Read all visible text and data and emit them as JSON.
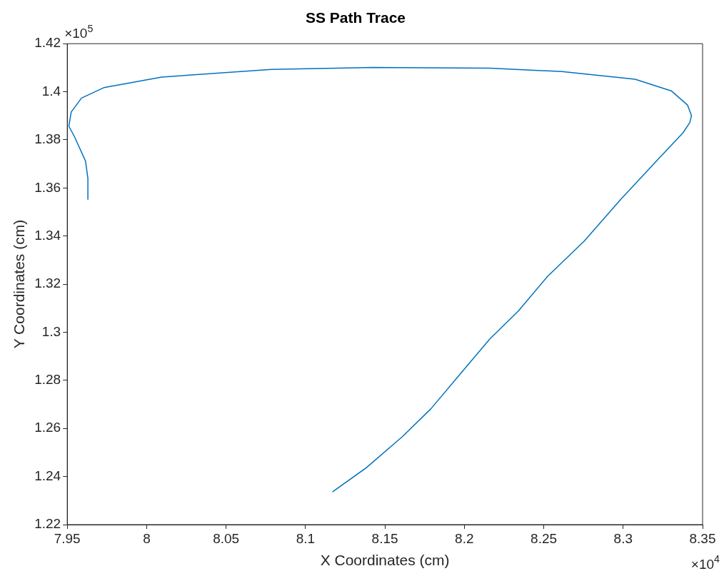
{
  "chart_data": {
    "type": "line",
    "title": "SS Path Trace",
    "xlabel": "X Coordinates (cm)",
    "ylabel": "Y Coordinates (cm)",
    "annotations": [
      "×10$^{5}$",
      "×10$^{4}$"
    ],
    "x": [
      8.117,
      8.138,
      8.161,
      8.179,
      8.1975,
      8.216,
      8.234,
      8.2525,
      8.2755,
      8.2985,
      8.321,
      8.3375,
      8.342,
      8.343,
      8.3405,
      8.3305,
      8.3075,
      8.2615,
      8.216,
      8.1425,
      8.0785,
      8.0095,
      7.973,
      7.959,
      7.9525,
      7.951,
      7.9545,
      7.9615,
      7.963,
      7.963
    ],
    "series": [
      {
        "color": "#0072bd",
        "values": [
          1.2336,
          1.2435,
          1.2566,
          1.2682,
          1.2827,
          1.2972,
          1.3088,
          1.3233,
          1.3379,
          1.3553,
          1.3712,
          1.3828,
          1.3872,
          1.3901,
          1.3945,
          1.4003,
          1.4052,
          1.4084,
          1.4098,
          1.4101,
          1.4093,
          1.4061,
          1.4017,
          1.3974,
          1.3916,
          1.3857,
          1.3814,
          1.3712,
          1.364,
          1.3553
        ]
      }
    ],
    "xlim": [
      7.95,
      8.35
    ],
    "xticks": [
      7.95,
      8,
      8.05,
      8.1,
      8.15,
      8.2,
      8.25,
      8.3,
      8.35
    ],
    "ylim": [
      1.22,
      1.42
    ],
    "yticks": [
      1.22,
      1.24,
      1.26,
      1.28,
      1.3,
      1.32,
      1.34,
      1.36,
      1.38,
      1.4,
      1.42
    ]
  }
}
